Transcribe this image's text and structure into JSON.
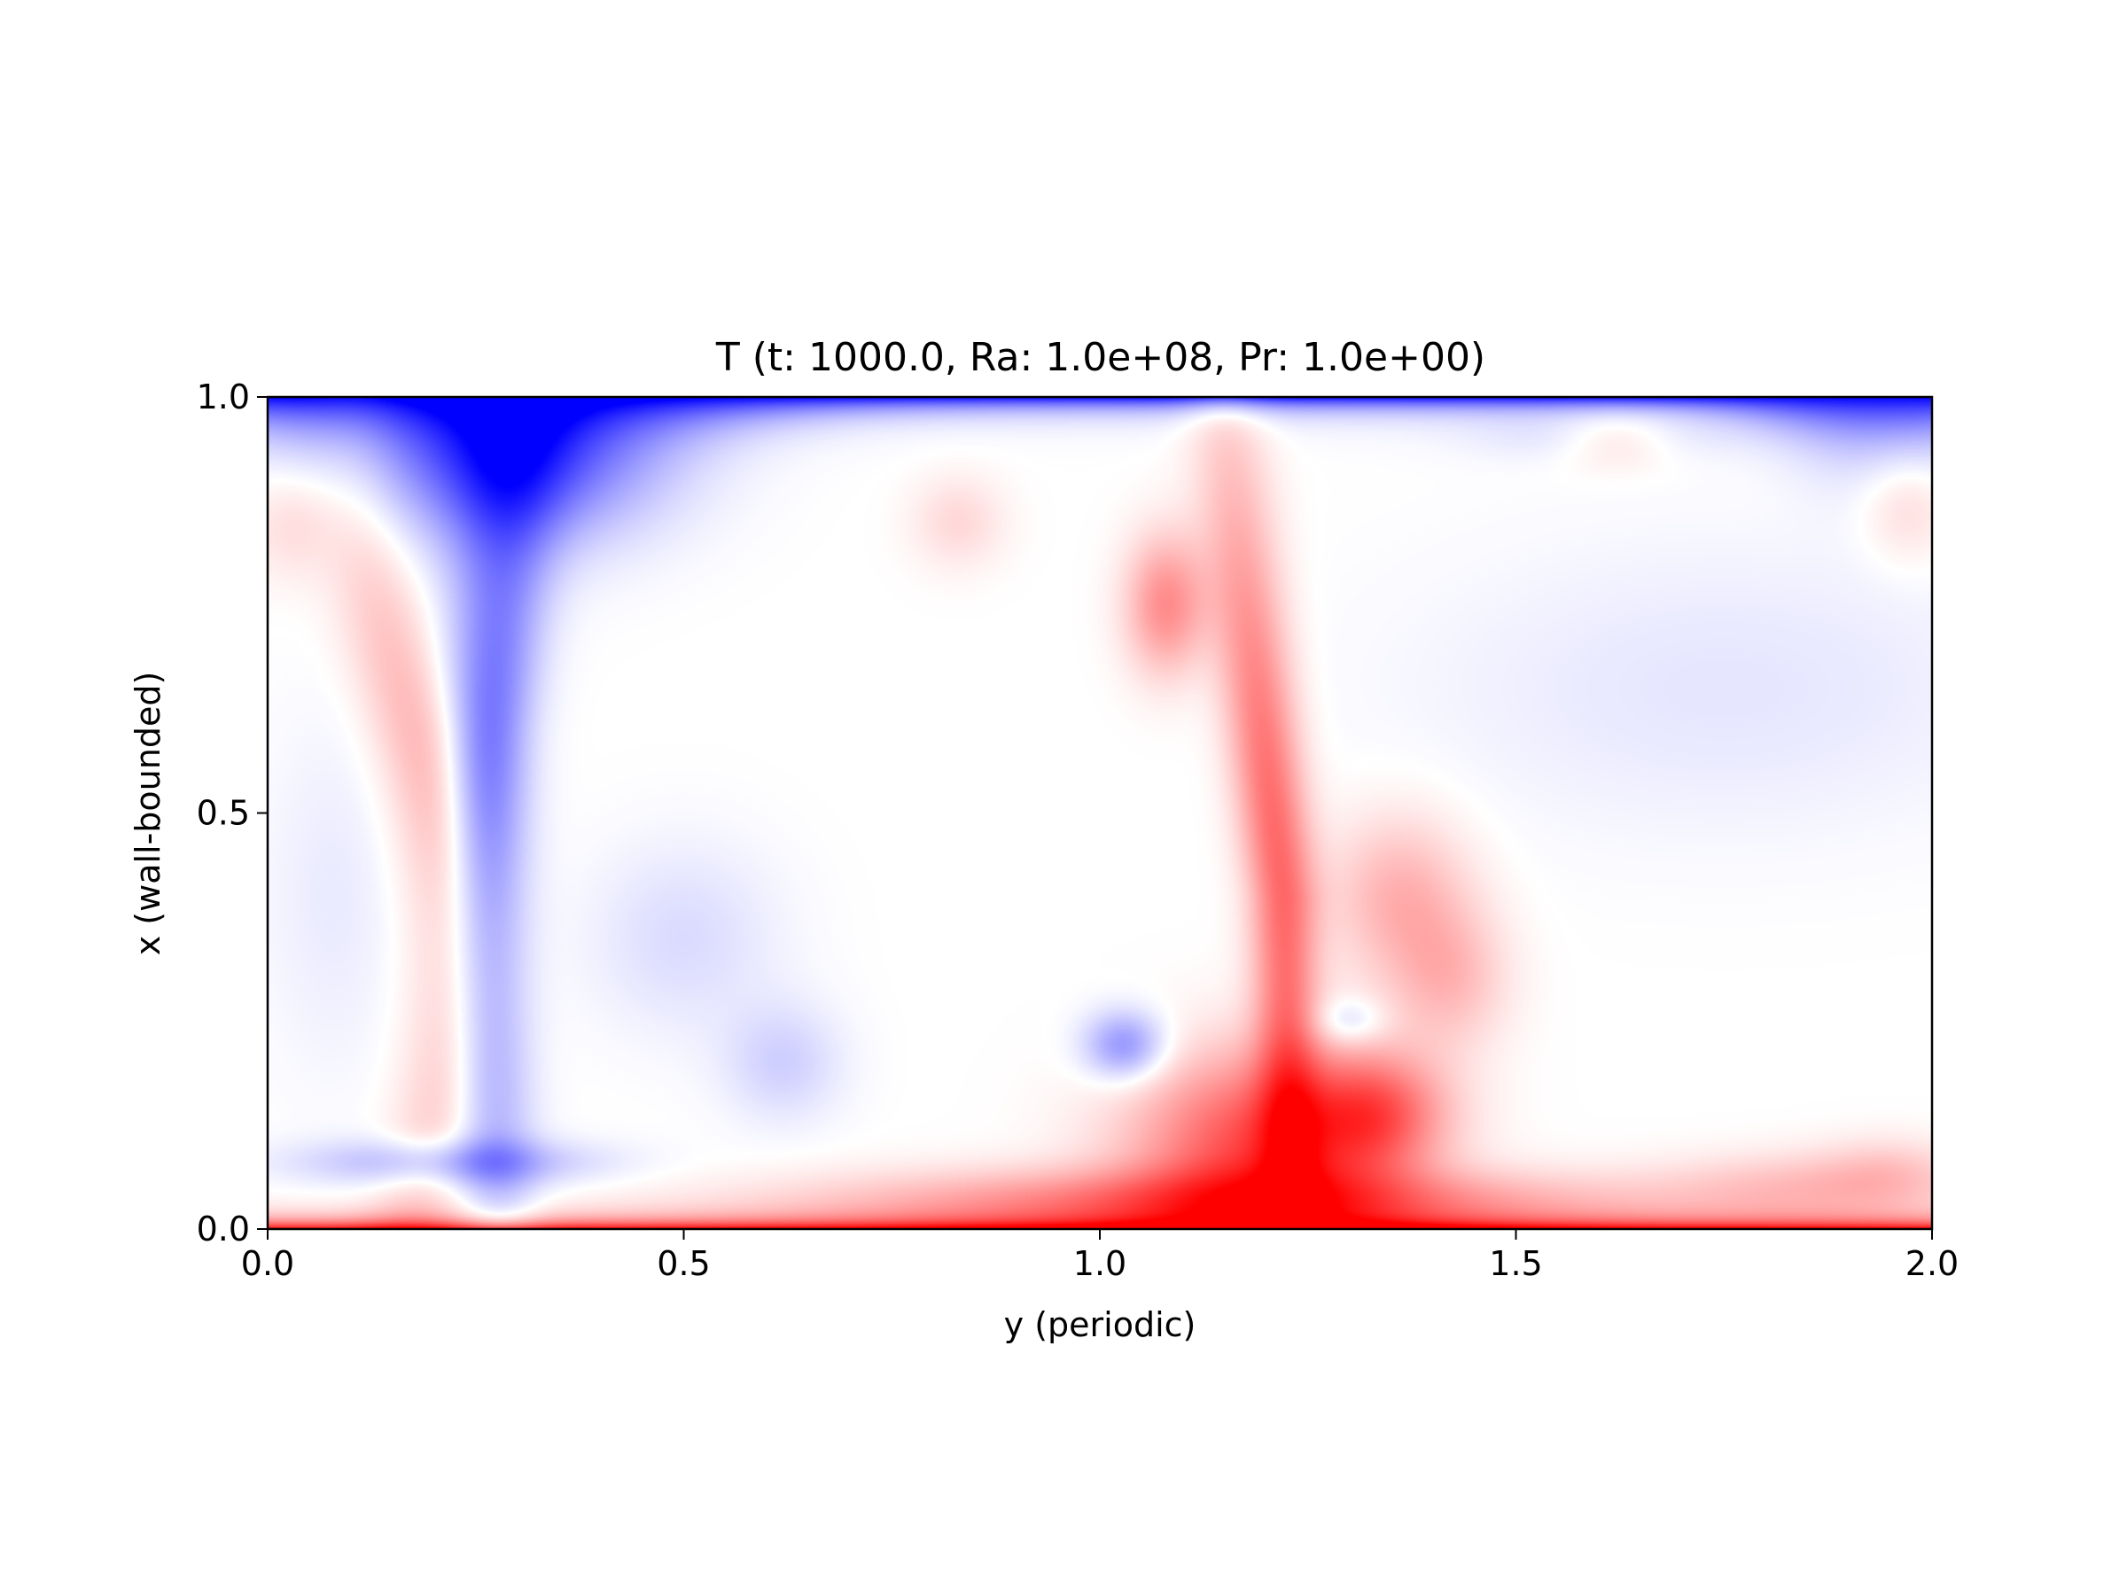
{
  "chart_data": {
    "type": "heatmap",
    "title": "T (t: 1000.0, Ra: 1.0e+08, Pr: 1.0e+00)",
    "xlabel": "y (periodic)",
    "ylabel": "x (wall-bounded)",
    "xlim": [
      0.0,
      2.0
    ],
    "ylim": [
      0.0,
      1.0
    ],
    "xticks": [
      "0.0",
      "0.5",
      "1.0",
      "1.5",
      "2.0"
    ],
    "xtick_values": [
      0.0,
      0.5,
      1.0,
      1.5,
      2.0
    ],
    "yticks": [
      "0.0",
      "0.5",
      "1.0"
    ],
    "ytick_values": [
      0.0,
      0.5,
      1.0
    ],
    "colormap": "bwr",
    "colors": {
      "cold": "#0000ff",
      "neutral": "#ffffff",
      "hot": "#ff0000"
    },
    "colorbar": false,
    "grid": false,
    "features": [
      {
        "kind": "hot boundary layer",
        "y": [
          0.0,
          2.0
        ],
        "x": 0.0,
        "value": 1.0
      },
      {
        "kind": "cold boundary layer",
        "y": [
          0.0,
          2.0
        ],
        "x": 1.0,
        "value": -1.0
      },
      {
        "kind": "cold plume",
        "y_center": 0.28,
        "x_range": [
          0.07,
          1.0
        ],
        "value": -0.55
      },
      {
        "kind": "hot plume",
        "y_center": 1.22,
        "x_range": [
          0.0,
          0.82
        ],
        "value": 0.6
      },
      {
        "kind": "hot plume base",
        "y_center": 1.2,
        "x_range": [
          0.0,
          0.2
        ],
        "value": 0.75
      },
      {
        "kind": "cold vortex",
        "y_center": 1.03,
        "x_center": 0.21,
        "value": -0.45
      },
      {
        "kind": "hot streak",
        "y_center": 0.18,
        "x_range": [
          0.1,
          0.85
        ],
        "value": 0.3
      }
    ]
  }
}
